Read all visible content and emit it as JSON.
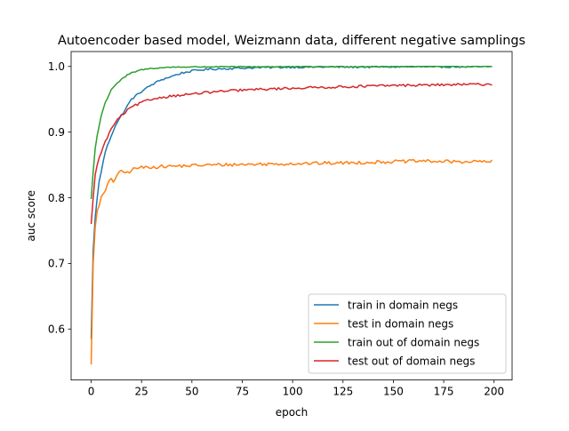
{
  "chart_data": {
    "type": "line",
    "title": "Autoencoder based model, Weizmann data, different negative samplings",
    "xlabel": "epoch",
    "ylabel": "auc score",
    "xlim": [
      -9.95,
      208.95
    ],
    "ylim": [
      0.5224,
      1.0227
    ],
    "xticks": [
      0,
      25,
      50,
      75,
      100,
      125,
      150,
      175,
      200
    ],
    "xtick_labels": [
      "0",
      "25",
      "50",
      "75",
      "100",
      "125",
      "150",
      "175",
      "200"
    ],
    "yticks": [
      0.6,
      0.7,
      0.8,
      0.9,
      1.0
    ],
    "ytick_labels": [
      "0.6",
      "0.7",
      "0.8",
      "0.9",
      "1.0"
    ],
    "grid": false,
    "legend_position": "lower right",
    "num_epochs": 200,
    "series": [
      {
        "name": "train in domain negs",
        "color": "#1f77b4",
        "anchors": [
          [
            0,
            0.585
          ],
          [
            1,
            0.72
          ],
          [
            2,
            0.77
          ],
          [
            3,
            0.8
          ],
          [
            4,
            0.825
          ],
          [
            5,
            0.84
          ],
          [
            7,
            0.87
          ],
          [
            10,
            0.895
          ],
          [
            12,
            0.91
          ],
          [
            15,
            0.925
          ],
          [
            18,
            0.94
          ],
          [
            20,
            0.95
          ],
          [
            25,
            0.962
          ],
          [
            30,
            0.972
          ],
          [
            35,
            0.98
          ],
          [
            40,
            0.985
          ],
          [
            45,
            0.99
          ],
          [
            50,
            0.993
          ],
          [
            55,
            0.995
          ],
          [
            60,
            0.996
          ],
          [
            70,
            0.997
          ],
          [
            80,
            0.998
          ],
          [
            100,
            0.999
          ],
          [
            150,
            0.9995
          ],
          [
            199,
            0.9998
          ]
        ],
        "noise": 0.0015
      },
      {
        "name": "test in domain negs",
        "color": "#ff7f0e",
        "anchors": [
          [
            0,
            0.546
          ],
          [
            1,
            0.7
          ],
          [
            2,
            0.755
          ],
          [
            3,
            0.78
          ],
          [
            4,
            0.79
          ],
          [
            5,
            0.8
          ],
          [
            7,
            0.81
          ],
          [
            9,
            0.825
          ],
          [
            10,
            0.83
          ],
          [
            11,
            0.825
          ],
          [
            13,
            0.835
          ],
          [
            15,
            0.84
          ],
          [
            18,
            0.838
          ],
          [
            20,
            0.842
          ],
          [
            22,
            0.845
          ],
          [
            25,
            0.846
          ],
          [
            30,
            0.847
          ],
          [
            40,
            0.848
          ],
          [
            50,
            0.849
          ],
          [
            60,
            0.85
          ],
          [
            80,
            0.851
          ],
          [
            100,
            0.852
          ],
          [
            125,
            0.853
          ],
          [
            150,
            0.855
          ],
          [
            165,
            0.856
          ],
          [
            175,
            0.855
          ],
          [
            199,
            0.855
          ]
        ],
        "noise": 0.0025
      },
      {
        "name": "train out of domain negs",
        "color": "#2ca02c",
        "anchors": [
          [
            0,
            0.798
          ],
          [
            1,
            0.84
          ],
          [
            2,
            0.875
          ],
          [
            3,
            0.895
          ],
          [
            4,
            0.91
          ],
          [
            5,
            0.925
          ],
          [
            7,
            0.945
          ],
          [
            9,
            0.958
          ],
          [
            10,
            0.965
          ],
          [
            12,
            0.972
          ],
          [
            15,
            0.98
          ],
          [
            18,
            0.987
          ],
          [
            20,
            0.99
          ],
          [
            25,
            0.995
          ],
          [
            30,
            0.997
          ],
          [
            40,
            0.999
          ],
          [
            60,
            0.9995
          ],
          [
            199,
            1.0
          ]
        ],
        "noise": 0.0008
      },
      {
        "name": "test out of domain negs",
        "color": "#d62728",
        "anchors": [
          [
            0,
            0.76
          ],
          [
            1,
            0.8
          ],
          [
            2,
            0.835
          ],
          [
            3,
            0.85
          ],
          [
            4,
            0.86
          ],
          [
            5,
            0.87
          ],
          [
            7,
            0.885
          ],
          [
            10,
            0.905
          ],
          [
            12,
            0.915
          ],
          [
            15,
            0.925
          ],
          [
            18,
            0.933
          ],
          [
            20,
            0.938
          ],
          [
            25,
            0.945
          ],
          [
            30,
            0.95
          ],
          [
            35,
            0.953
          ],
          [
            40,
            0.955
          ],
          [
            50,
            0.958
          ],
          [
            60,
            0.961
          ],
          [
            75,
            0.964
          ],
          [
            100,
            0.967
          ],
          [
            125,
            0.969
          ],
          [
            150,
            0.971
          ],
          [
            175,
            0.972
          ],
          [
            199,
            0.973
          ]
        ],
        "noise": 0.0018
      }
    ]
  }
}
